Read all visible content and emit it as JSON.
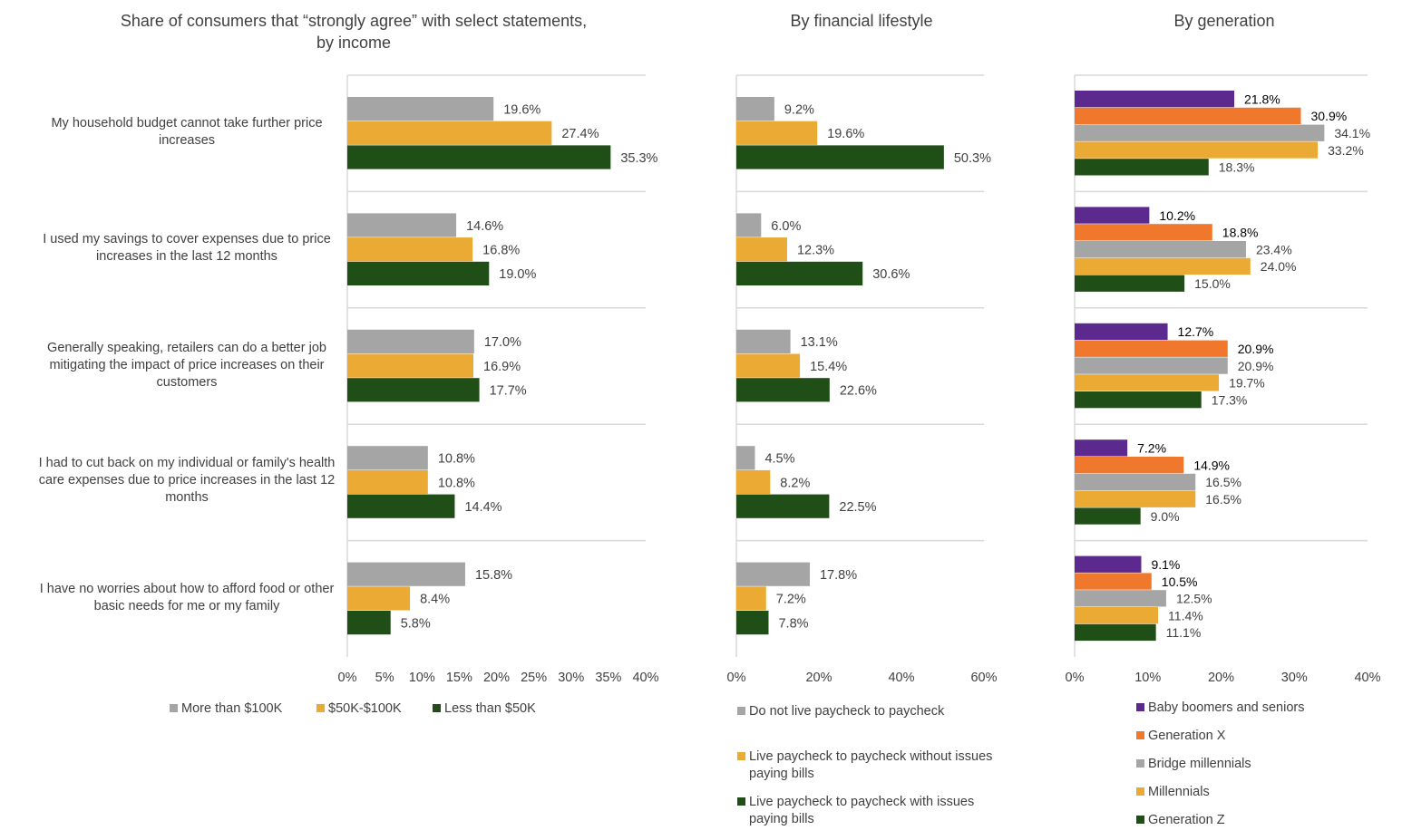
{
  "chart_data": [
    {
      "type": "bar",
      "orientation": "horizontal",
      "title": "Share of consumers that “strongly agree” with select statements, by income",
      "categories": [
        "My household budget cannot take further price increases",
        "I used my savings to cover expenses due to price increases in the last 12 months",
        "Generally speaking, retailers can do a better job mitigating the impact of price increases on their customers",
        "I had to cut back on my individual or family's health care expenses due to price increases in the last 12 months",
        "I have no worries about how to afford food or other basic needs for me or my family"
      ],
      "series": [
        {
          "name": "More than $100K",
          "color": "#A5A5A5",
          "values": [
            19.6,
            14.6,
            17.0,
            10.8,
            15.8
          ]
        },
        {
          "name": "$50K-$100K",
          "color": "#EAAA33",
          "values": [
            27.4,
            16.8,
            16.9,
            10.8,
            8.4
          ]
        },
        {
          "name": "Less than $50K",
          "color": "#1F4E16",
          "values": [
            35.3,
            19.0,
            17.7,
            14.4,
            5.8
          ]
        }
      ],
      "xlim": [
        0,
        40
      ],
      "ticks": [
        "0%",
        "5%",
        "10%",
        "15%",
        "20%",
        "25%",
        "30%",
        "35%",
        "40%"
      ],
      "tick_values": [
        0,
        5,
        10,
        15,
        20,
        25,
        30,
        35,
        40
      ],
      "legend": "bottom"
    },
    {
      "type": "bar",
      "orientation": "horizontal",
      "title": "By financial lifestyle",
      "series": [
        {
          "name": "Do not live paycheck to paycheck",
          "color": "#A5A5A5",
          "values": [
            9.2,
            6.0,
            13.1,
            4.5,
            17.8
          ]
        },
        {
          "name": "Live paycheck to paycheck without issues paying bills",
          "color": "#EAAA33",
          "values": [
            19.6,
            12.3,
            15.4,
            8.2,
            7.2
          ]
        },
        {
          "name": "Live paycheck to paycheck with issues paying bills",
          "color": "#1F4E16",
          "values": [
            50.3,
            30.6,
            22.6,
            22.5,
            7.8
          ]
        }
      ],
      "xlim": [
        0,
        60
      ],
      "ticks": [
        "0%",
        "20%",
        "40%",
        "60%"
      ],
      "tick_values": [
        0,
        20,
        40,
        60
      ],
      "legend": "bottom"
    },
    {
      "type": "bar",
      "orientation": "horizontal",
      "title": "By generation",
      "series": [
        {
          "name": "Baby boomers and seniors",
          "color": "#5C2A8E",
          "label_color": "#000000",
          "values": [
            21.8,
            10.2,
            12.7,
            7.2,
            9.1
          ]
        },
        {
          "name": "Generation X",
          "color": "#F0782D",
          "label_color": "#000000",
          "values": [
            30.9,
            18.8,
            20.9,
            14.9,
            10.5
          ]
        },
        {
          "name": "Bridge millennials",
          "color": "#A5A5A5",
          "values": [
            34.1,
            23.4,
            20.9,
            16.5,
            12.5
          ]
        },
        {
          "name": "Millennials",
          "color": "#EAAA33",
          "values": [
            33.2,
            24.0,
            19.7,
            16.5,
            11.4
          ]
        },
        {
          "name": "Generation Z",
          "color": "#1F4E16",
          "values": [
            18.3,
            15.0,
            17.3,
            9.0,
            11.1
          ]
        }
      ],
      "xlim": [
        0,
        40
      ],
      "ticks": [
        "0%",
        "10%",
        "20%",
        "30%",
        "40%"
      ],
      "tick_values": [
        0,
        10,
        20,
        30,
        40
      ],
      "legend": "bottom"
    }
  ],
  "titles": {
    "income_line1": "Share of consumers that “strongly agree” with select statements,",
    "income_line2": "by income",
    "lifestyle": "By financial lifestyle",
    "generation": "By generation"
  }
}
